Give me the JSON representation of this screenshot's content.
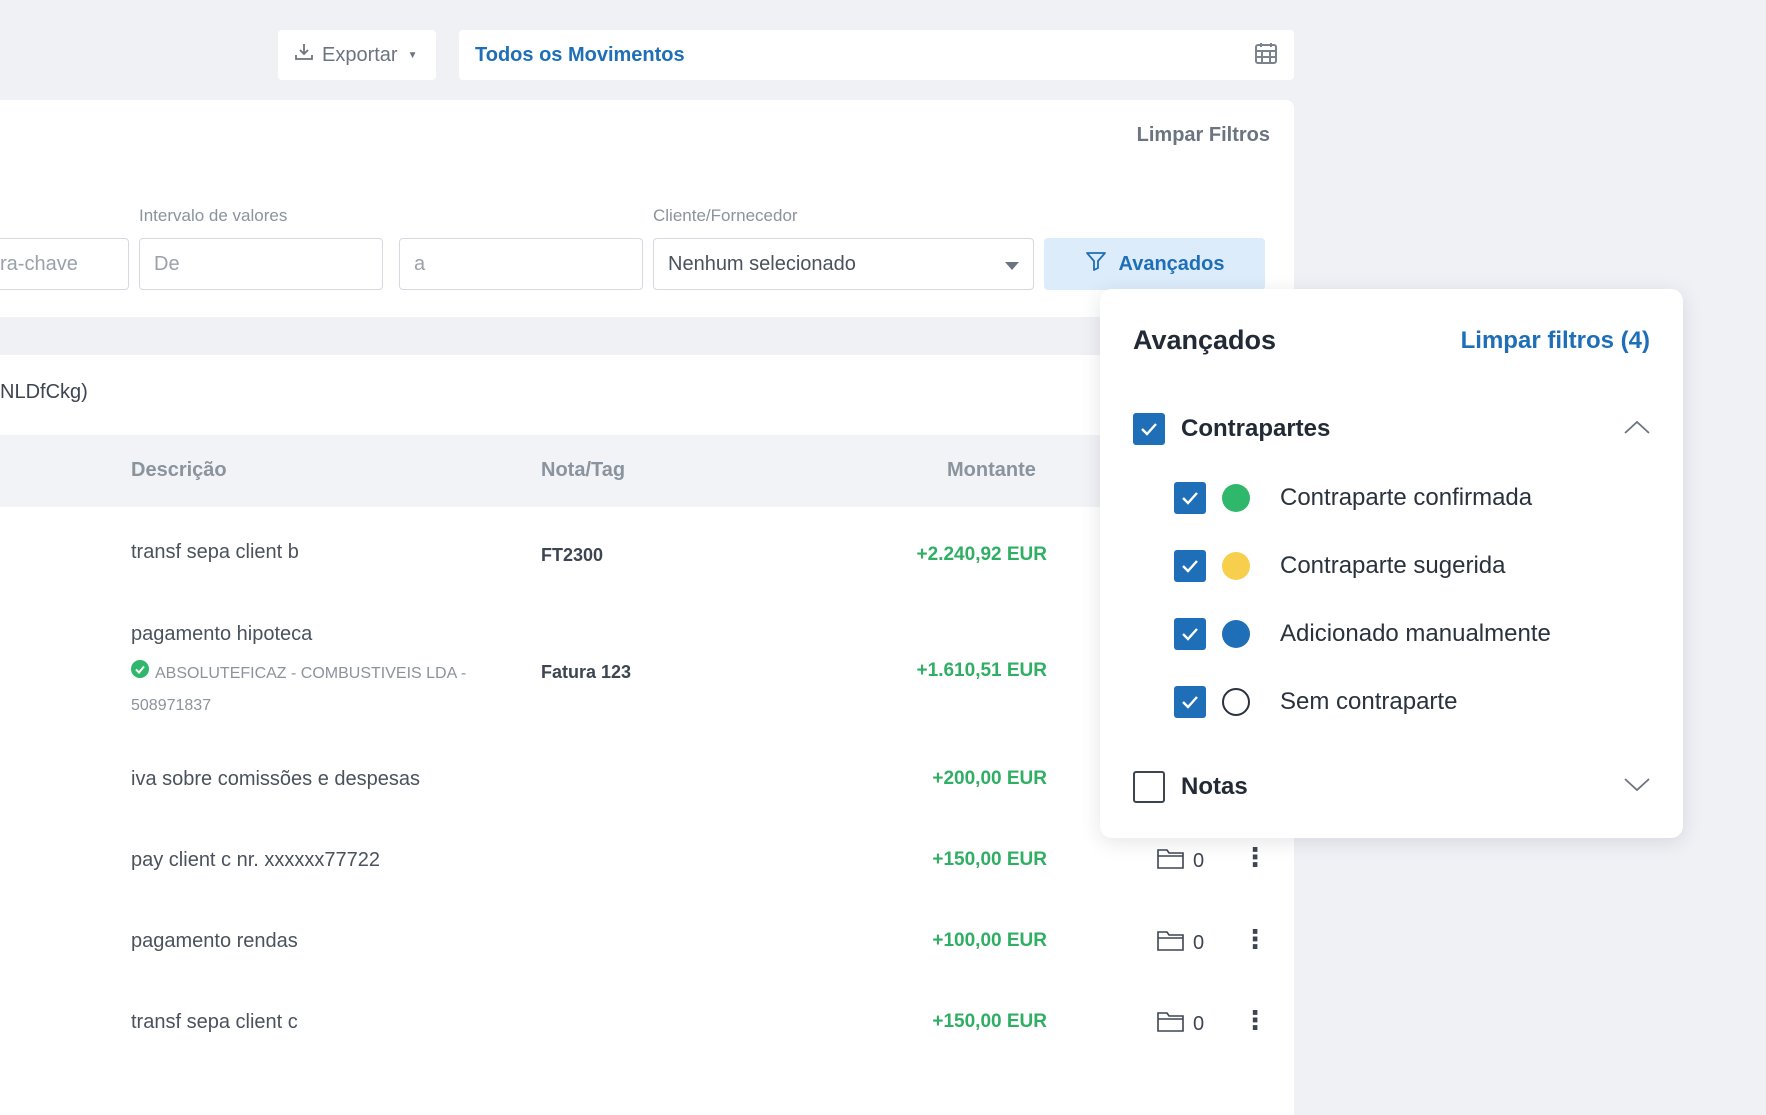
{
  "toolbar": {
    "export_label": "Exportar",
    "period_label": "Todos os Movimentos"
  },
  "filters": {
    "clear_label": "Limpar Filtros",
    "keyword_placeholder": "ra-chave",
    "value_range_label": "Intervalo de valores",
    "from_placeholder": "De",
    "to_placeholder": "a",
    "counterparty_label": "Cliente/Fornecedor",
    "counterparty_value": "Nenhum selecionado",
    "advanced_label": "Avançados"
  },
  "table": {
    "account_name": "NLDfCkg)",
    "headers": {
      "description": "Descrição",
      "note_tag": "Nota/Tag",
      "amount": "Montante"
    },
    "rows": [
      {
        "description": "transf sepa client b",
        "tag": "FT2300",
        "amount": "+2.240,92 EUR"
      },
      {
        "description": "pagamento hipoteca",
        "sub1": "ABSOLUTEFICAZ - COMBUSTIVEIS LDA -",
        "sub2": "508971837",
        "tag": "Fatura 123",
        "amount": "+1.610,51 EUR"
      },
      {
        "description": "iva sobre comissões e despesas",
        "amount": "+200,00 EUR"
      },
      {
        "description": "pay client c nr. xxxxxx77722",
        "amount": "+150,00 EUR",
        "files": "0"
      },
      {
        "description": "pagamento rendas",
        "amount": "+100,00 EUR",
        "files": "0"
      },
      {
        "description": "transf sepa client c",
        "amount": "+150,00 EUR",
        "files": "0"
      }
    ]
  },
  "advanced_popover": {
    "title": "Avançados",
    "clear_label": "Limpar filtros (4)",
    "groups": {
      "counterparts": {
        "label": "Contrapartes",
        "checked": true,
        "expanded": true,
        "options": [
          {
            "label": "Contraparte confirmada",
            "checked": true,
            "color": "#2fb86b"
          },
          {
            "label": "Contraparte sugerida",
            "checked": true,
            "color": "#f7cf4d"
          },
          {
            "label": "Adicionado manualmente",
            "checked": true,
            "color": "#1e6fb8"
          },
          {
            "label": "Sem contraparte",
            "checked": true,
            "color": "#ffffff"
          }
        ]
      },
      "notes": {
        "label": "Notas",
        "checked": false,
        "expanded": false
      }
    }
  },
  "colors": {
    "accent": "#1e6fb8",
    "positive": "#2fae64",
    "background": "#eff1f5"
  }
}
